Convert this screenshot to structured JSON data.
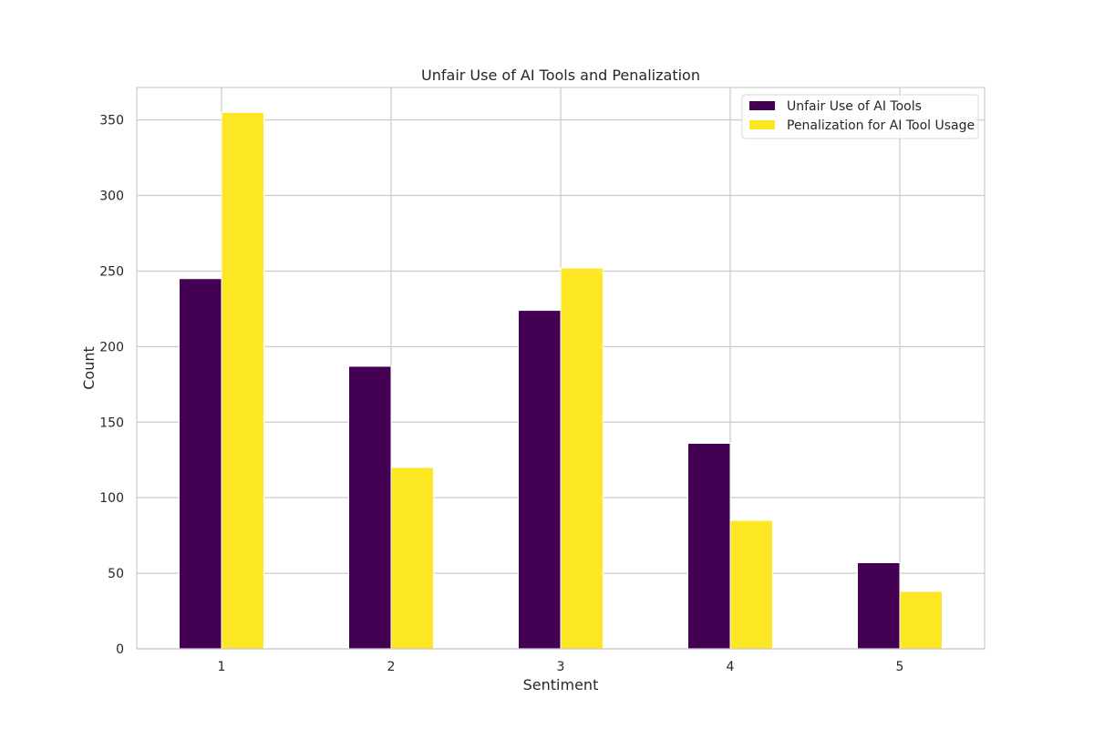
{
  "chart_data": {
    "type": "bar",
    "title": "Unfair Use of AI Tools and Penalization",
    "xlabel": "Sentiment",
    "ylabel": "Count",
    "categories": [
      "1",
      "2",
      "3",
      "4",
      "5"
    ],
    "series": [
      {
        "name": "Unfair Use of AI Tools",
        "values": [
          245,
          187,
          224,
          136,
          57
        ],
        "color": "#440154"
      },
      {
        "name": "Penalization for AI Tool Usage",
        "values": [
          355,
          120,
          252,
          85,
          38
        ],
        "color": "#fde725"
      }
    ],
    "ylim": [
      0,
      371.5
    ],
    "yticks": [
      0,
      50,
      100,
      150,
      200,
      250,
      300,
      350
    ],
    "grid": true,
    "legend_position": "top-right"
  }
}
